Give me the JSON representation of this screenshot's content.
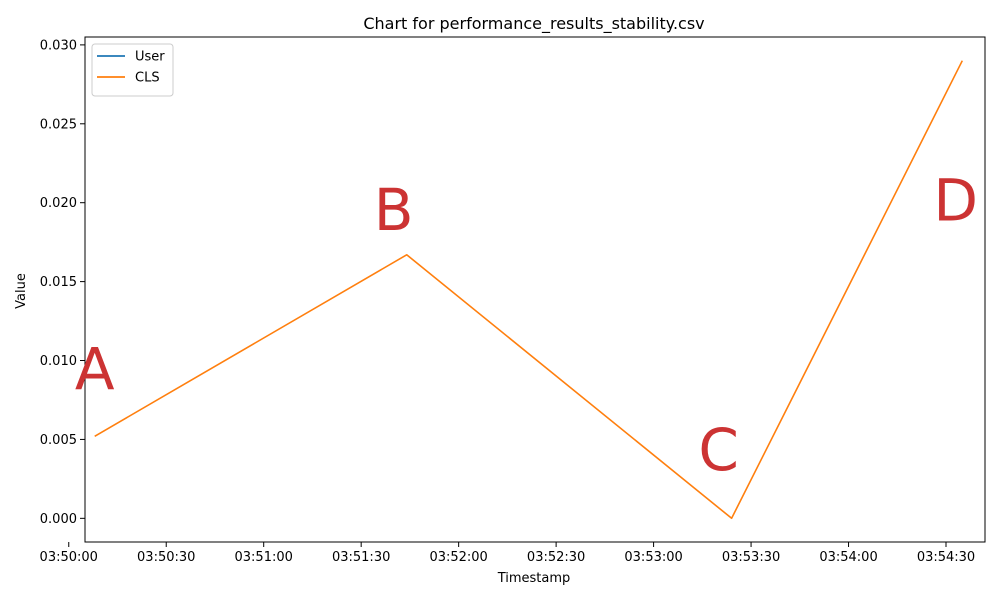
{
  "chart_data": {
    "type": "line",
    "title": "Chart for performance_results_stability.csv",
    "xlabel": "Timestamp",
    "ylabel": "Value",
    "x_ticks": [
      "03:50:00",
      "03:50:30",
      "03:51:00",
      "03:51:30",
      "03:52:00",
      "03:52:30",
      "03:53:00",
      "03:53:30",
      "03:54:00",
      "03:54:30"
    ],
    "y_ticks": [
      "0.000",
      "0.005",
      "0.010",
      "0.015",
      "0.020",
      "0.025",
      "0.030"
    ],
    "xlim": [
      "03:50:05",
      "03:54:42"
    ],
    "ylim": [
      -0.0015,
      0.0305
    ],
    "grid": false,
    "legend_position": "top-left",
    "series": [
      {
        "name": "User",
        "color": "#1f77b4",
        "points": []
      },
      {
        "name": "CLS",
        "color": "#ff7f0e",
        "points": [
          {
            "x": "03:50:08",
            "y": 0.0052
          },
          {
            "x": "03:51:44",
            "y": 0.0167
          },
          {
            "x": "03:53:24",
            "y": 0.0
          },
          {
            "x": "03:54:35",
            "y": 0.029
          }
        ]
      }
    ],
    "annotations": [
      {
        "text": "A",
        "x": "03:50:08",
        "y": 0.0093
      },
      {
        "text": "B",
        "x": "03:51:40",
        "y": 0.0194
      },
      {
        "text": "C",
        "x": "03:53:20",
        "y": 0.0042
      },
      {
        "text": "D",
        "x": "03:54:33",
        "y": 0.02
      }
    ],
    "annotation_color": "#cc3333"
  }
}
